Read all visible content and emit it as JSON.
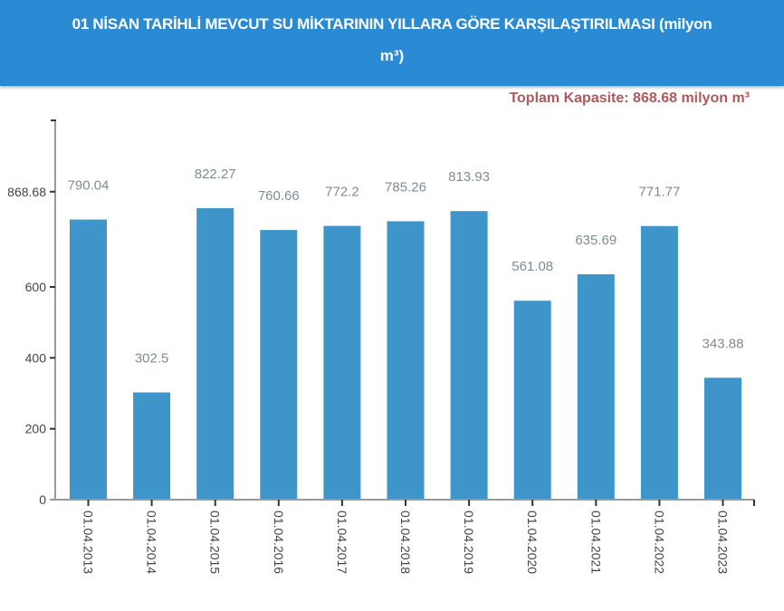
{
  "header": {
    "title_line1": "01 NİSAN TARİHLİ MEVCUT SU MİKTARININ YILLARA GÖRE KARŞILAŞTIRILMASI (milyon",
    "title_line2": "m³)"
  },
  "capacity_label": "Toplam Kapasite: 868.68 milyon m³",
  "colors": {
    "header_bg": "#2a8bd4",
    "bar": "#3e95c9",
    "capacity_text": "#b0585a",
    "value_label": "#7f8c96"
  },
  "chart_data": {
    "type": "bar",
    "title": "01 NİSAN TARİHLİ MEVCUT SU MİKTARININ YILLARA GÖRE KARŞILAŞTIRILMASI (milyon m³)",
    "subtitle": "Toplam Kapasite: 868.68 milyon m³",
    "xlabel": "",
    "ylabel": "",
    "categories": [
      "01.04.2013",
      "01.04.2014",
      "01.04.2015",
      "01.04.2016",
      "01.04.2017",
      "01.04.2018",
      "01.04.2019",
      "01.04.2020",
      "01.04.2021",
      "01.04.2022",
      "01.04.2023"
    ],
    "values": [
      790.04,
      302.5,
      822.27,
      760.66,
      772.2,
      785.26,
      813.93,
      561.08,
      635.69,
      771.77,
      343.88
    ],
    "value_labels": [
      "790.04",
      "302.5",
      "822.27",
      "760.66",
      "772.2",
      "785.26",
      "813.93",
      "561.08",
      "635.69",
      "771.77",
      "343.88"
    ],
    "y_ticks": [
      0,
      200,
      400,
      600,
      868.68
    ],
    "y_tick_labels": [
      "0",
      "200",
      "400",
      "600",
      "868.68"
    ],
    "ylim": [
      0,
      1070
    ],
    "grid": false,
    "legend": "none"
  }
}
